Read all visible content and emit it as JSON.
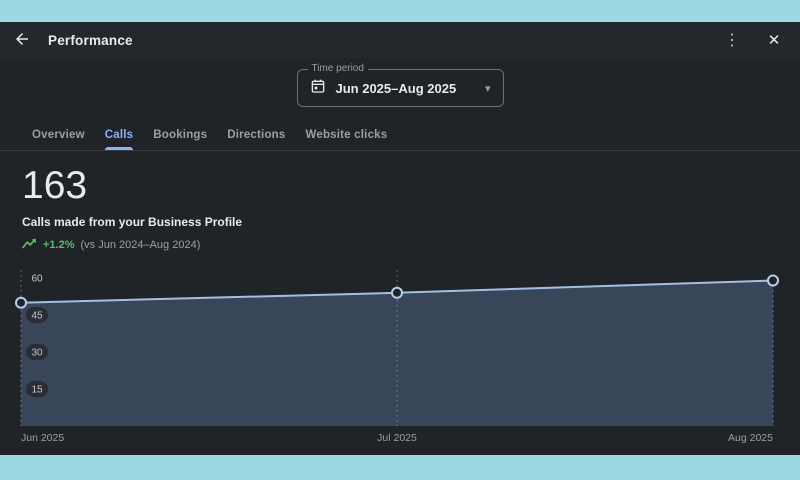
{
  "frame": {
    "border_color": "#9cd8e3"
  },
  "header": {
    "title": "Performance",
    "back_icon": "back-arrow",
    "more_icon": "⋮",
    "close_icon": "✕"
  },
  "time_period": {
    "label": "Time period",
    "value": "Jun 2025–Aug 2025",
    "caret": "▾"
  },
  "tabs": [
    {
      "label": "Overview",
      "active": false
    },
    {
      "label": "Calls",
      "active": true
    },
    {
      "label": "Bookings",
      "active": false
    },
    {
      "label": "Directions",
      "active": false
    },
    {
      "label": "Website clicks",
      "active": false
    }
  ],
  "metric": {
    "value": "163",
    "description": "Calls made from your Business Profile",
    "trend": {
      "direction": "up",
      "delta": "+1.2%",
      "comparison": "(vs Jun 2024–Aug 2024)",
      "color": "#5bb974"
    }
  },
  "chart_data": {
    "type": "area",
    "title": "Calls made from your Business Profile",
    "x": [
      "Jun 2025",
      "Jul 2025",
      "Aug 2025"
    ],
    "values": [
      50,
      54,
      59
    ],
    "total": 163,
    "ylim": [
      0,
      65
    ],
    "yticks": [
      15,
      30,
      45,
      60
    ],
    "xlabel": "",
    "ylabel": "",
    "legend": "none",
    "grid": "dotted-vertical-guides-at-points",
    "line_color": "#a3bfe3",
    "fill_color": "rgba(138,180,248,0.24)",
    "point_stroke": "#b8cfec",
    "point_fill": "#202327",
    "guide_color": "#8a8f96",
    "tick_color": "#9aa0a6",
    "pill_bg": "#2a2d33",
    "pill_text": "#c4c7cc"
  }
}
